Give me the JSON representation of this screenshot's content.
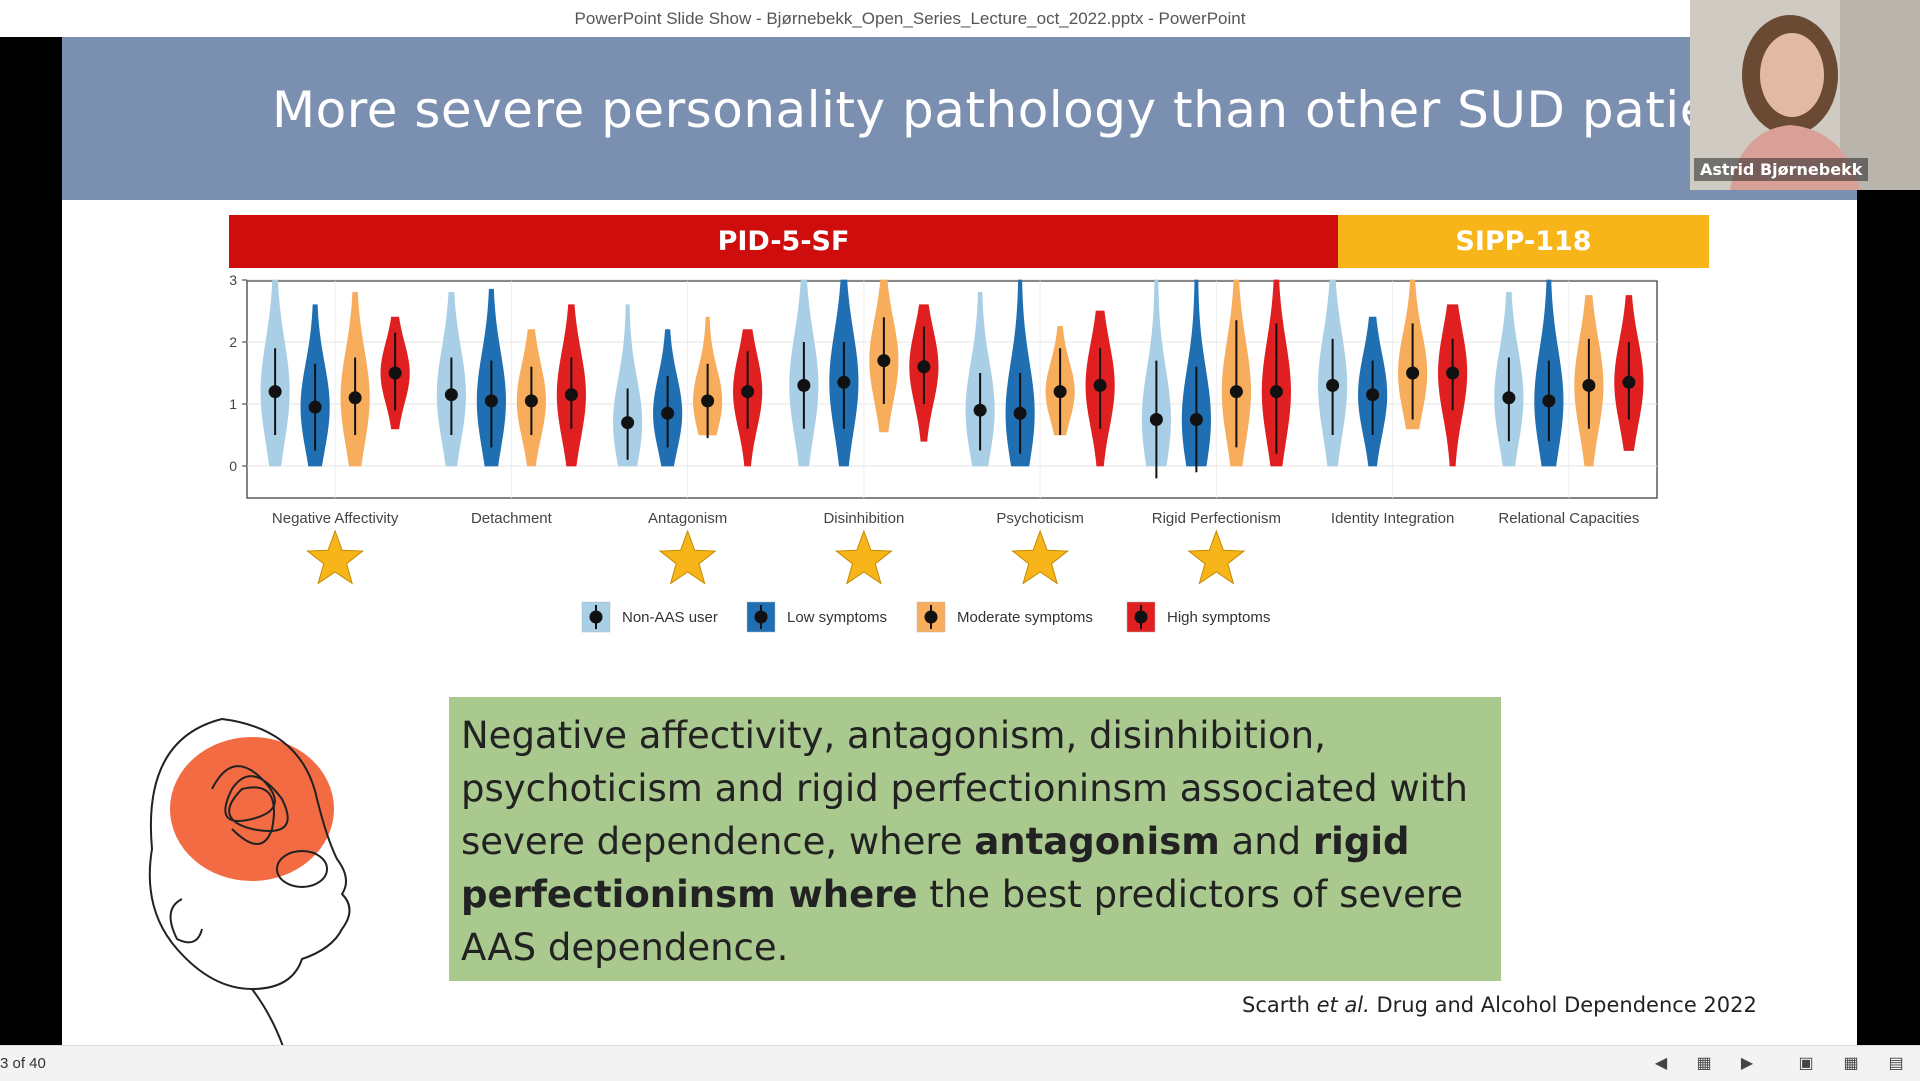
{
  "window": {
    "title": "PowerPoint Slide Show  -  Bjørnebekk_Open_Series_Lecture_oct_2022.pptx - PowerPoint"
  },
  "slide": {
    "title": "More severe personality pathology than other SUD patients",
    "band_pid": "PID-5-SF",
    "band_sipp": "SIPP-118",
    "textbox": {
      "part1": "Negative affectivity, antagonism, disinhibition, psychoticism and rigid perfectioninsm associated with severe dependence, where ",
      "bold1": "antagonism",
      "part2": " and ",
      "bold2": "rigid perfectioninsm where",
      "part3": " the best predictors of severe AAS dependence."
    },
    "citation": {
      "authors": "Scarth ",
      "etal": "et al.",
      "journal": " Drug and Alcohol Dependence 2022"
    }
  },
  "webcam": {
    "name": "Astrid Bjørnebekk"
  },
  "statusbar": {
    "slide_counter": "3 of 40"
  },
  "colors": {
    "non_aas": "#a8cfe6",
    "low": "#1f6fb2",
    "moderate": "#f7ad5c",
    "high": "#e02020",
    "header": "#7b8fb0",
    "star": "#f7b519"
  },
  "chart_data": {
    "type": "violin",
    "y_ticks": [
      "0",
      "1",
      "2",
      "3"
    ],
    "ylim": [
      0,
      3
    ],
    "categories": [
      "Negative Affectivity",
      "Detachment",
      "Antagonism",
      "Disinhibition",
      "Psychoticism",
      "Rigid Perfectionism",
      "Identity Integration",
      "Relational Capacities"
    ],
    "significant": [
      true,
      false,
      true,
      true,
      true,
      true,
      false,
      false
    ],
    "legend": [
      "Non-AAS user",
      "Low symptoms",
      "Moderate symptoms",
      "High symptoms"
    ],
    "series": [
      {
        "name": "Non-AAS user",
        "medians": [
          1.2,
          1.15,
          0.7,
          1.3,
          0.9,
          0.75,
          1.3,
          1.1
        ],
        "lower": [
          0.5,
          0.5,
          0.1,
          0.6,
          0.25,
          -0.2,
          0.5,
          0.4
        ],
        "upper": [
          1.9,
          1.75,
          1.25,
          2.0,
          1.5,
          1.7,
          2.05,
          1.75
        ],
        "min": [
          0,
          0,
          0,
          0,
          0,
          0,
          0,
          0
        ],
        "max": [
          3,
          2.8,
          2.6,
          3,
          2.8,
          3,
          3,
          2.8
        ]
      },
      {
        "name": "Low symptoms",
        "medians": [
          0.95,
          1.05,
          0.85,
          1.35,
          0.85,
          0.75,
          1.15,
          1.05
        ],
        "lower": [
          0.25,
          0.3,
          0.3,
          0.6,
          0.2,
          -0.1,
          0.5,
          0.4
        ],
        "upper": [
          1.65,
          1.7,
          1.45,
          2.0,
          1.5,
          1.6,
          1.7,
          1.7
        ],
        "min": [
          0,
          0,
          0,
          0,
          0,
          0,
          0,
          0
        ],
        "max": [
          2.6,
          2.85,
          2.2,
          3,
          3,
          3,
          2.4,
          3
        ]
      },
      {
        "name": "Moderate symptoms",
        "medians": [
          1.1,
          1.05,
          1.05,
          1.7,
          1.2,
          1.2,
          1.5,
          1.3
        ],
        "lower": [
          0.5,
          0.5,
          0.45,
          1.0,
          0.5,
          0.3,
          0.75,
          0.6
        ],
        "upper": [
          1.75,
          1.6,
          1.65,
          2.4,
          1.9,
          2.35,
          2.3,
          2.05
        ],
        "min": [
          0,
          0,
          0.5,
          0.55,
          0.5,
          0,
          0.6,
          0
        ],
        "max": [
          2.8,
          2.2,
          2.4,
          3,
          2.25,
          3,
          3,
          2.75
        ]
      },
      {
        "name": "High symptoms",
        "medians": [
          1.5,
          1.15,
          1.2,
          1.6,
          1.3,
          1.2,
          1.5,
          1.35
        ],
        "lower": [
          0.9,
          0.6,
          0.6,
          1.0,
          0.6,
          0.2,
          0.9,
          0.75
        ],
        "upper": [
          2.15,
          1.75,
          1.85,
          2.25,
          1.9,
          2.3,
          2.05,
          2.0
        ],
        "min": [
          0.6,
          0,
          0,
          0.4,
          0,
          0,
          0,
          0.25
        ],
        "max": [
          2.4,
          2.6,
          2.2,
          2.6,
          2.5,
          3,
          2.6,
          2.75
        ]
      }
    ]
  }
}
